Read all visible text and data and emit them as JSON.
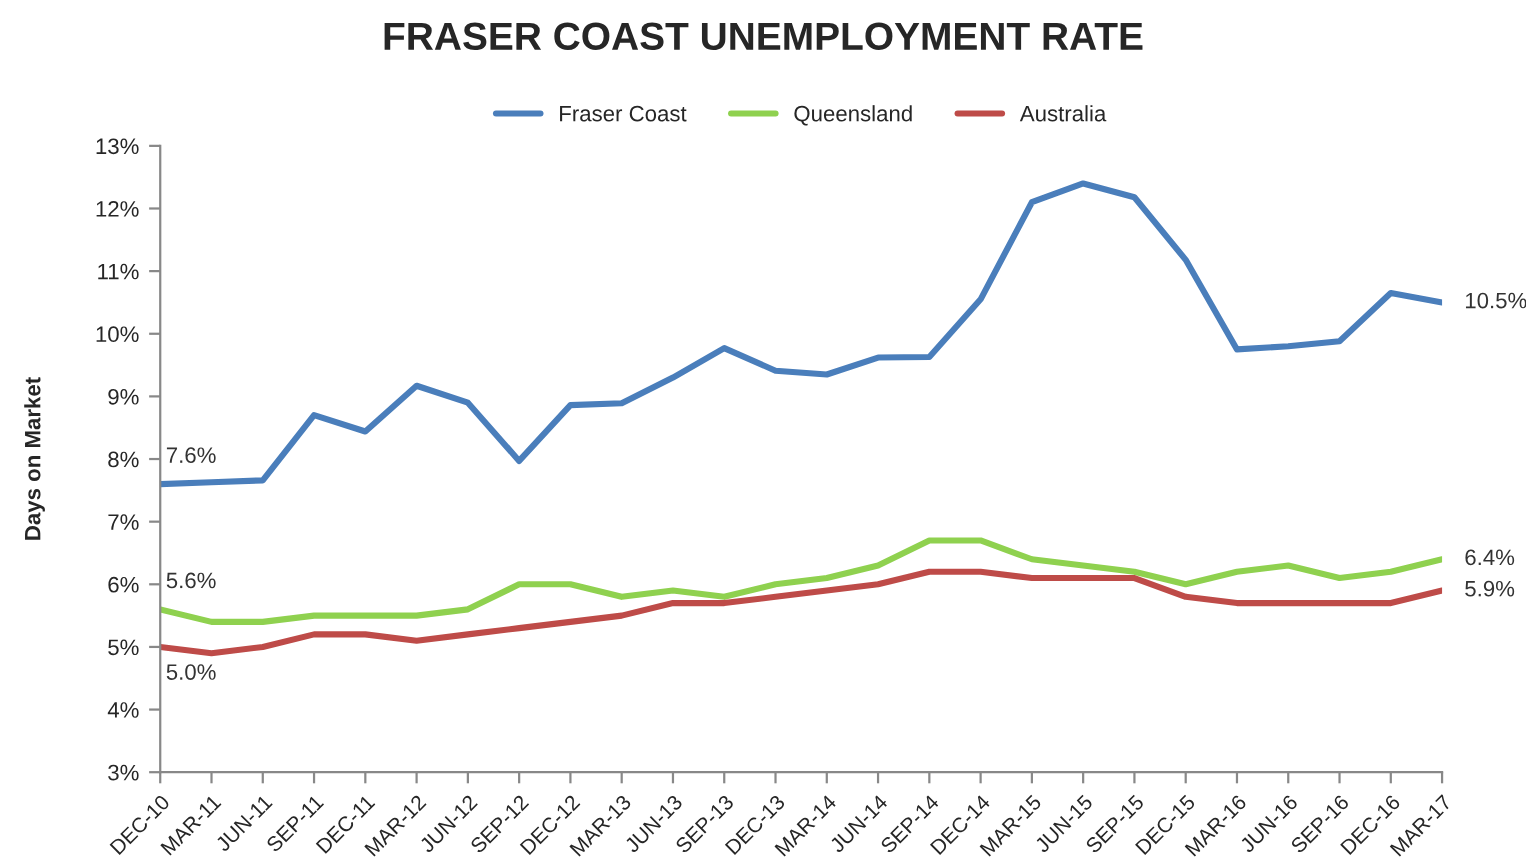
{
  "chart_data": {
    "type": "line",
    "title": "FRASER COAST UNEMPLOYMENT RATE",
    "ylabel": "Days on Market",
    "categories": [
      "DEC-10",
      "MAR-11",
      "JUN-11",
      "SEP-11",
      "DEC-11",
      "MAR-12",
      "JUN-12",
      "SEP-12",
      "DEC-12",
      "MAR-13",
      "JUN-13",
      "SEP-13",
      "DEC-13",
      "MAR-14",
      "JUN-14",
      "SEP-14",
      "DEC-14",
      "MAR-15",
      "JUN-15",
      "SEP-15",
      "DEC-15",
      "MAR-16",
      "JUN-16",
      "SEP-16",
      "DEC-16",
      "MAR-17"
    ],
    "series": [
      {
        "name": "Fraser Coast",
        "color": "#4a7ebb",
        "values": [
          7.6,
          7.63,
          7.66,
          8.7,
          8.44,
          9.17,
          8.9,
          7.97,
          8.86,
          8.89,
          9.3,
          9.77,
          9.41,
          9.35,
          9.62,
          9.63,
          10.55,
          12.1,
          12.4,
          12.18,
          11.18,
          9.75,
          9.8,
          9.88,
          10.65,
          10.5
        ],
        "value_labels": [
          "7.6%",
          null,
          null,
          null,
          null,
          null,
          null,
          null,
          null,
          null,
          null,
          null,
          null,
          null,
          null,
          null,
          null,
          null,
          null,
          null,
          null,
          null,
          null,
          null,
          null,
          "10.5%"
        ]
      },
      {
        "name": "Queensland",
        "color": "#8fd14f",
        "values": [
          5.6,
          5.4,
          5.4,
          5.5,
          5.5,
          5.5,
          5.6,
          6.0,
          6.0,
          5.8,
          5.9,
          5.8,
          6.0,
          6.1,
          6.3,
          6.7,
          6.7,
          6.4,
          6.3,
          6.2,
          6.0,
          6.2,
          6.3,
          6.1,
          6.2,
          6.4
        ],
        "value_labels": [
          "5.6%",
          null,
          null,
          null,
          null,
          null,
          null,
          null,
          null,
          null,
          null,
          null,
          null,
          null,
          null,
          null,
          null,
          null,
          null,
          null,
          null,
          null,
          null,
          null,
          null,
          "6.4%"
        ]
      },
      {
        "name": "Australia",
        "color": "#be4b48",
        "values": [
          5.0,
          4.9,
          5.0,
          5.2,
          5.2,
          5.1,
          5.2,
          5.3,
          5.4,
          5.5,
          5.7,
          5.7,
          5.8,
          5.9,
          6.0,
          6.2,
          6.2,
          6.1,
          6.1,
          6.1,
          5.8,
          5.7,
          5.7,
          5.7,
          5.7,
          5.9
        ],
        "value_labels": [
          "5.0%",
          null,
          null,
          null,
          null,
          null,
          null,
          null,
          null,
          null,
          null,
          null,
          null,
          null,
          null,
          null,
          null,
          null,
          null,
          null,
          null,
          null,
          null,
          null,
          null,
          "5.9%"
        ]
      }
    ],
    "ylim": [
      3,
      13
    ],
    "yticks": [
      {
        "value": 3,
        "label": "3%"
      },
      {
        "value": 4,
        "label": "4%"
      },
      {
        "value": 5,
        "label": "5%"
      },
      {
        "value": 6,
        "label": "6%"
      },
      {
        "value": 7,
        "label": "7%"
      },
      {
        "value": 8,
        "label": "8%"
      },
      {
        "value": 9,
        "label": "9%"
      },
      {
        "value": 10,
        "label": "10%"
      },
      {
        "value": 11,
        "label": "11%"
      },
      {
        "value": 12,
        "label": "12%"
      },
      {
        "value": 13,
        "label": "13%"
      }
    ],
    "legend": "top",
    "marker": "none",
    "line_style": "solid"
  }
}
